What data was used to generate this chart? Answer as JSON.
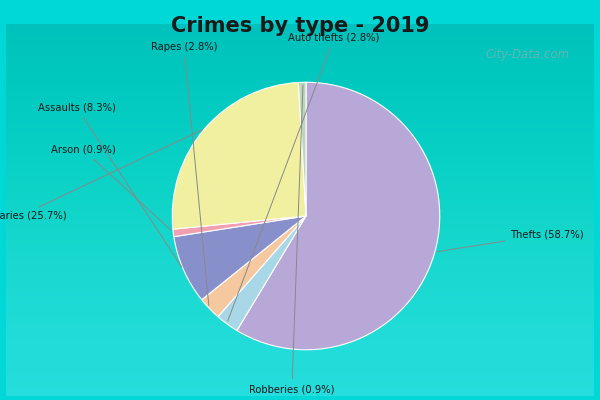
{
  "title": "Crimes by type - 2019",
  "title_fontsize": 15,
  "background_outer": "#00d8d8",
  "background_inner_top": "#e8f5f0",
  "background_inner_bottom": "#d0e8d8",
  "slices": [
    {
      "label": "Thefts",
      "pct": 58.7,
      "color": "#b8a8d8"
    },
    {
      "label": "Auto thefts",
      "pct": 2.8,
      "color": "#a8d8e8"
    },
    {
      "label": "Rapes",
      "pct": 2.8,
      "color": "#f5c8a0"
    },
    {
      "label": "Assaults",
      "pct": 8.3,
      "color": "#8890cc"
    },
    {
      "label": "Arson",
      "pct": 0.9,
      "color": "#f0a0b0"
    },
    {
      "label": "Burglaries",
      "pct": 25.7,
      "color": "#f0f0a0"
    },
    {
      "label": "Robberies",
      "pct": 0.9,
      "color": "#b8d8b8"
    }
  ],
  "watermark": "City-Data.com"
}
